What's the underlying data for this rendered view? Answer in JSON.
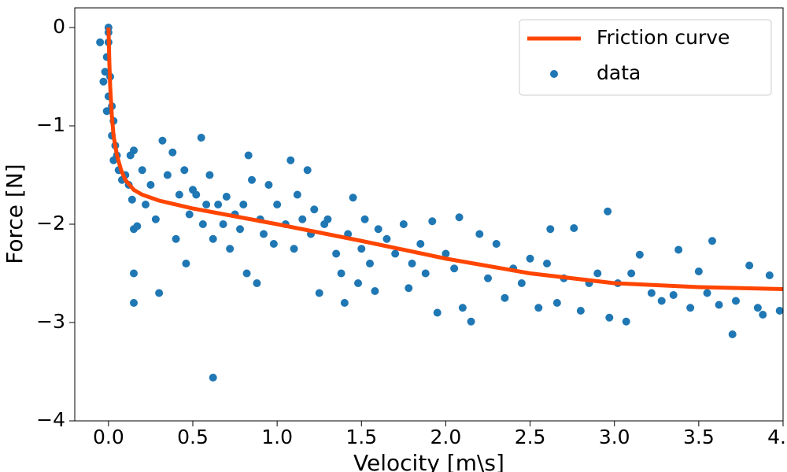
{
  "chart_data": {
    "type": "scatter",
    "x_label": "Velocity [m\\s]",
    "y_label": "Force [N]",
    "xlim": [
      -0.2,
      4.0
    ],
    "ylim": [
      -4,
      0.2
    ],
    "xticks": [
      {
        "value": 0,
        "label": "0.0"
      },
      {
        "value": 0.5,
        "label": "0.5"
      },
      {
        "value": 1,
        "label": "1.0"
      },
      {
        "value": 1.5,
        "label": "1.5"
      },
      {
        "value": 2,
        "label": "2.0"
      },
      {
        "value": 2.5,
        "label": "2.5"
      },
      {
        "value": 3,
        "label": "3.0"
      },
      {
        "value": 3.5,
        "label": "3.5"
      },
      {
        "value": 4,
        "label": "4.0"
      }
    ],
    "yticks": [
      {
        "value": -4,
        "label": "−4"
      },
      {
        "value": -3,
        "label": "−3"
      },
      {
        "value": -2,
        "label": "−2"
      },
      {
        "value": -1,
        "label": "−1"
      },
      0
    ],
    "legend": "upper right",
    "series": [
      {
        "name": "Friction curve",
        "type": "line",
        "color": "#ff4500",
        "x": [
          0,
          0.005,
          0.01,
          0.02,
          0.03,
          0.05,
          0.075,
          0.1,
          0.15,
          0.2,
          0.3,
          0.5,
          0.75,
          1.0,
          1.5,
          2.0,
          2.5,
          3.0,
          3.5,
          4.0
        ],
        "values": [
          0,
          -0.35,
          -0.6,
          -0.9,
          -1.1,
          -1.3,
          -1.45,
          -1.55,
          -1.65,
          -1.7,
          -1.76,
          -1.84,
          -1.92,
          -2.0,
          -2.17,
          -2.35,
          -2.5,
          -2.6,
          -2.64,
          -2.66
        ]
      },
      {
        "name": "data",
        "type": "scatter",
        "color": "#1f77b4",
        "x": [
          0,
          0,
          0,
          -0.01,
          -0.02,
          0.01,
          -0.05,
          -0.03,
          0,
          0.02,
          -0.01,
          0.03,
          0.02,
          0.04,
          0.03,
          0.05,
          0.06,
          0.08,
          0.1,
          0.12,
          0.13,
          0.15,
          0.14,
          0.15,
          0.17,
          0.15,
          0.15,
          0.2,
          0.22,
          0.25,
          0.28,
          0.3,
          0.32,
          0.35,
          0.38,
          0.4,
          0.42,
          0.45,
          0.46,
          0.48,
          0.5,
          0.52,
          0.55,
          0.56,
          0.58,
          0.6,
          0.62,
          0.62,
          0.65,
          0.68,
          0.7,
          0.72,
          0.75,
          0.78,
          0.8,
          0.82,
          0.83,
          0.85,
          0.88,
          0.9,
          0.92,
          0.95,
          0.98,
          1.0,
          1.05,
          1.08,
          1.1,
          1.12,
          1.15,
          1.18,
          1.2,
          1.22,
          1.25,
          1.28,
          1.3,
          1.35,
          1.38,
          1.4,
          1.42,
          1.45,
          1.48,
          1.5,
          1.52,
          1.55,
          1.58,
          1.6,
          1.65,
          1.7,
          1.75,
          1.78,
          1.8,
          1.85,
          1.88,
          1.92,
          1.95,
          2.0,
          2.05,
          2.08,
          2.1,
          2.15,
          2.2,
          2.25,
          2.3,
          2.35,
          2.4,
          2.45,
          2.5,
          2.55,
          2.6,
          2.62,
          2.66,
          2.7,
          2.76,
          2.8,
          2.85,
          2.9,
          2.96,
          2.97,
          3.02,
          3.07,
          3.1,
          3.15,
          3.22,
          3.28,
          3.35,
          3.38,
          3.45,
          3.5,
          3.55,
          3.58,
          3.62,
          3.7,
          3.72,
          3.8,
          3.85,
          3.88,
          3.92,
          3.98
        ],
        "values": [
          0,
          -0.05,
          -0.15,
          -0.3,
          -0.45,
          -0.5,
          -0.15,
          -0.55,
          -0.7,
          -0.8,
          -0.85,
          -0.95,
          -1.1,
          -1.2,
          -1.35,
          -1.3,
          -1.45,
          -1.55,
          -1.5,
          -1.6,
          -1.3,
          -1.25,
          -1.75,
          -2.05,
          -2.02,
          -2.5,
          -2.8,
          -1.45,
          -1.8,
          -1.6,
          -1.95,
          -2.7,
          -1.15,
          -1.5,
          -1.27,
          -2.15,
          -1.7,
          -1.45,
          -2.4,
          -1.9,
          -1.65,
          -1.7,
          -1.12,
          -2.0,
          -1.8,
          -1.5,
          -2.15,
          -3.56,
          -1.8,
          -2.0,
          -1.72,
          -2.25,
          -1.9,
          -2.05,
          -1.8,
          -2.5,
          -1.3,
          -1.55,
          -2.6,
          -1.95,
          -2.1,
          -1.6,
          -2.2,
          -1.8,
          -2.0,
          -1.35,
          -2.25,
          -1.7,
          -1.95,
          -1.45,
          -2.1,
          -1.85,
          -2.7,
          -2.0,
          -1.95,
          -2.3,
          -2.5,
          -2.8,
          -2.1,
          -1.73,
          -2.6,
          -2.25,
          -1.95,
          -2.4,
          -2.68,
          -2.05,
          -2.15,
          -2.3,
          -2.0,
          -2.65,
          -2.4,
          -2.2,
          -2.5,
          -1.97,
          -2.9,
          -2.3,
          -2.45,
          -1.93,
          -2.85,
          -2.99,
          -2.1,
          -2.55,
          -2.2,
          -2.75,
          -2.45,
          -2.6,
          -2.35,
          -2.85,
          -2.4,
          -2.05,
          -2.8,
          -2.55,
          -2.04,
          -2.88,
          -2.6,
          -2.5,
          -1.87,
          -2.95,
          -2.6,
          -2.99,
          -2.5,
          -2.31,
          -2.7,
          -2.78,
          -2.72,
          -2.26,
          -2.85,
          -2.48,
          -2.7,
          -2.17,
          -2.82,
          -3.12,
          -2.78,
          -2.42,
          -2.85,
          -2.92,
          -2.52,
          -2.88
        ]
      }
    ]
  }
}
